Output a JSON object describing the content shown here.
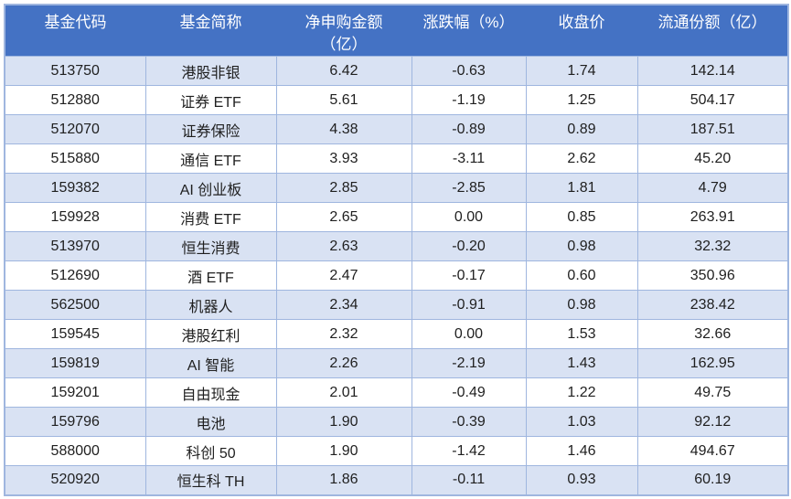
{
  "table": {
    "columns": [
      "基金代码",
      "基金简称",
      "净申购金额\n（亿）",
      "涨跌幅（%）",
      "收盘价",
      "流通份额（亿）"
    ],
    "rows": [
      [
        "513750",
        "港股非银",
        "6.42",
        "-0.63",
        "1.74",
        "142.14"
      ],
      [
        "512880",
        "证券 ETF",
        "5.61",
        "-1.19",
        "1.25",
        "504.17"
      ],
      [
        "512070",
        "证券保险",
        "4.38",
        "-0.89",
        "0.89",
        "187.51"
      ],
      [
        "515880",
        "通信 ETF",
        "3.93",
        "-3.11",
        "2.62",
        "45.20"
      ],
      [
        "159382",
        "AI 创业板",
        "2.85",
        "-2.85",
        "1.81",
        "4.79"
      ],
      [
        "159928",
        "消费 ETF",
        "2.65",
        "0.00",
        "0.85",
        "263.91"
      ],
      [
        "513970",
        "恒生消费",
        "2.63",
        "-0.20",
        "0.98",
        "32.32"
      ],
      [
        "512690",
        "酒 ETF",
        "2.47",
        "-0.17",
        "0.60",
        "350.96"
      ],
      [
        "562500",
        "机器人",
        "2.34",
        "-0.91",
        "0.98",
        "238.42"
      ],
      [
        "159545",
        "港股红利",
        "2.32",
        "0.00",
        "1.53",
        "32.66"
      ],
      [
        "159819",
        "AI 智能",
        "2.26",
        "-2.19",
        "1.43",
        "162.95"
      ],
      [
        "159201",
        "自由现金",
        "2.01",
        "-0.49",
        "1.22",
        "49.75"
      ],
      [
        "159796",
        "电池",
        "1.90",
        "-0.39",
        "1.03",
        "92.12"
      ],
      [
        "588000",
        "科创 50",
        "1.90",
        "-1.42",
        "1.46",
        "494.67"
      ],
      [
        "520920",
        "恒生科 TH",
        "1.86",
        "-0.11",
        "0.93",
        "60.19"
      ]
    ],
    "colors": {
      "header_bg": "#4472C4",
      "header_text": "#FFFFFF",
      "stripe_bg": "#D9E2F3",
      "row_bg": "#FFFFFF",
      "border": "#9FB6DF",
      "text": "#1F1F1F"
    }
  }
}
